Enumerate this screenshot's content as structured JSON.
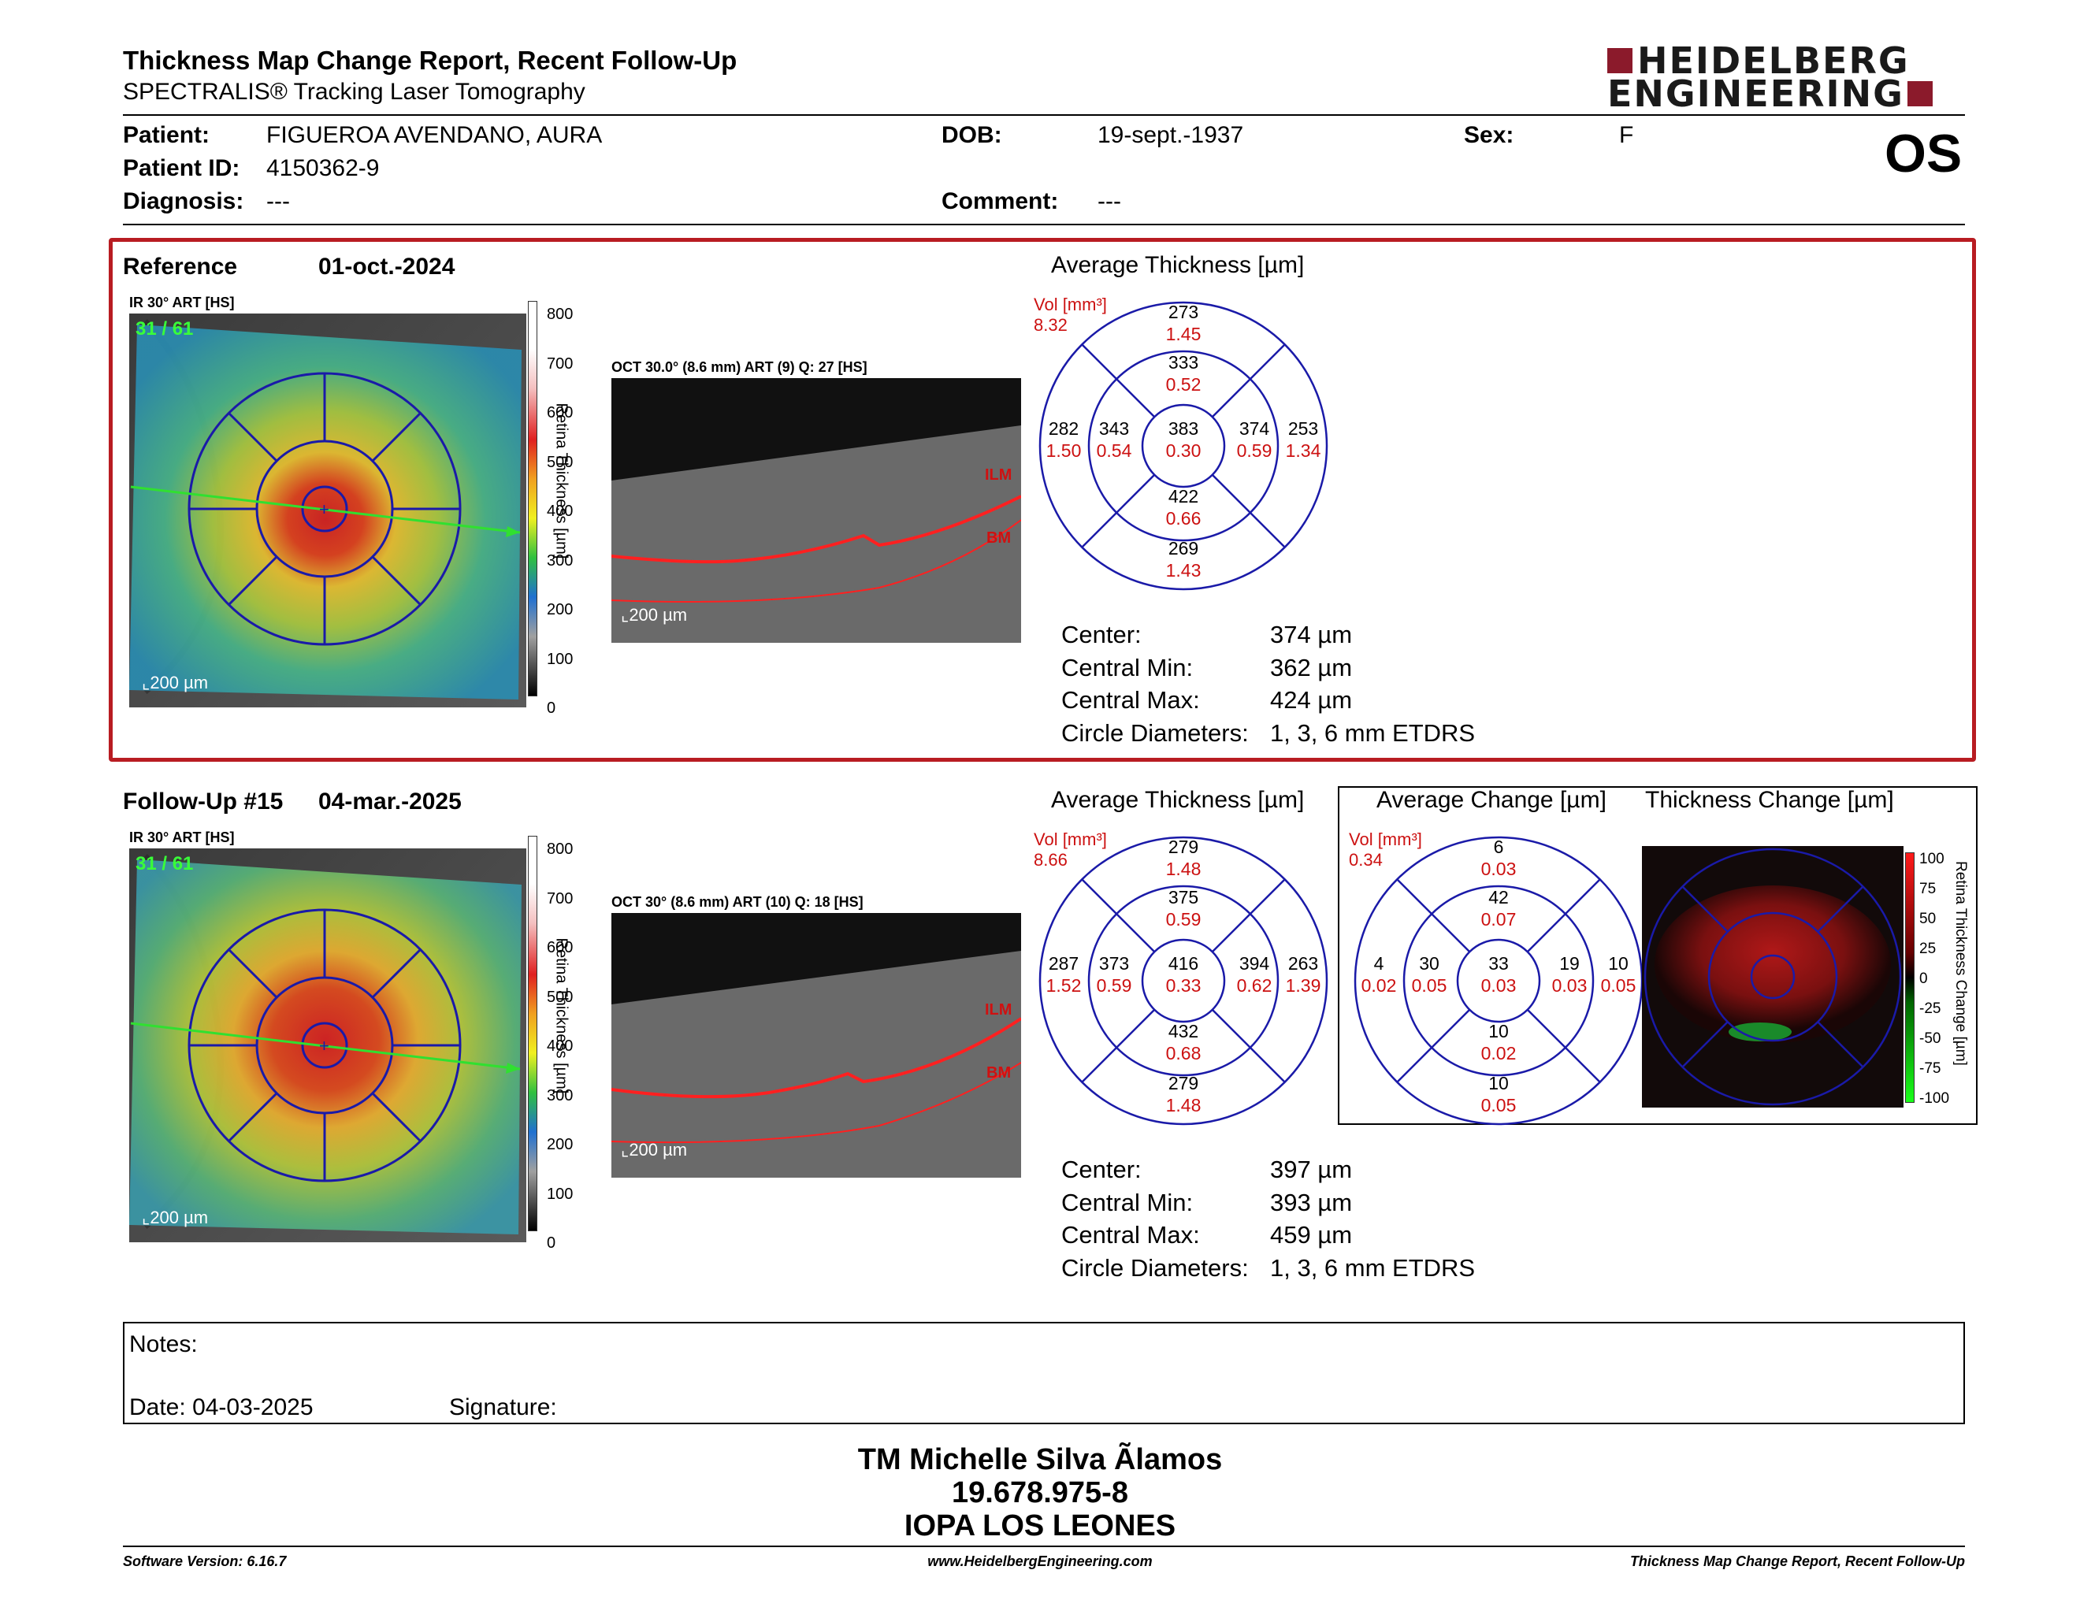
{
  "header": {
    "title": "Thickness Map Change Report, Recent Follow-Up",
    "subtitle": "SPECTRALIS® Tracking Laser Tomography",
    "logo_line1": "HEIDELBERG",
    "logo_line2": "ENGINEERING",
    "eye": "OS"
  },
  "patient": {
    "name_label": "Patient:",
    "name": "FIGUEROA AVENDANO, AURA",
    "id_label": "Patient ID:",
    "id": "4150362-9",
    "diagnosis_label": "Diagnosis:",
    "diagnosis": "---",
    "dob_label": "DOB:",
    "dob": "19-sept.-1937",
    "comment_label": "Comment:",
    "comment": "---",
    "sex_label": "Sex:",
    "sex": "F"
  },
  "colors": {
    "accent_red": "#b81c22",
    "etdrs_blue": "#1a1aa8",
    "volume_red": "#cc1111",
    "brand": "#8b1a2b"
  },
  "reference": {
    "label": "Reference",
    "date": "01-oct.-2024",
    "ir_caption": "IR 30° ART [HS]",
    "ir_counter": "31 / 61",
    "scale_bar": "200 µm",
    "oct_caption": "OCT 30.0° (8.6 mm) ART (9) Q: 27 [HS]",
    "oct_scale": "200 µm",
    "ilm": "ILM",
    "bm": "BM",
    "colorbar_ticks": [
      "800",
      "700",
      "600",
      "500",
      "400",
      "300",
      "200",
      "100",
      "0"
    ],
    "colorbar_label": "Retina Thickness [µm]",
    "avg_title": "Average Thickness [µm]",
    "vol_label": "Vol [mm³]",
    "vol_total": "8.32",
    "grid": {
      "outer_top": {
        "t": "273",
        "v": "1.45"
      },
      "inner_top": {
        "t": "333",
        "v": "0.52"
      },
      "outer_left": {
        "t": "282",
        "v": "1.50"
      },
      "inner_left": {
        "t": "343",
        "v": "0.54"
      },
      "center": {
        "t": "383",
        "v": "0.30"
      },
      "inner_right": {
        "t": "374",
        "v": "0.59"
      },
      "outer_right": {
        "t": "253",
        "v": "1.34"
      },
      "inner_bottom": {
        "t": "422",
        "v": "0.66"
      },
      "outer_bottom": {
        "t": "269",
        "v": "1.43"
      }
    },
    "stats": {
      "center_label": "Center:",
      "center": "374 µm",
      "min_label": "Central Min:",
      "min": "362 µm",
      "max_label": "Central Max:",
      "max": "424 µm",
      "diam_label": "Circle Diameters:",
      "diam": "1, 3, 6 mm ETDRS"
    }
  },
  "followup": {
    "label": "Follow-Up #15",
    "date": "04-mar.-2025",
    "ir_caption": "IR 30° ART [HS]",
    "ir_counter": "31 / 61",
    "scale_bar": "200 µm",
    "oct_caption": "OCT 30° (8.6 mm) ART (10) Q: 18 [HS]",
    "oct_scale": "200 µm",
    "ilm": "ILM",
    "bm": "BM",
    "colorbar_ticks": [
      "800",
      "700",
      "600",
      "500",
      "400",
      "300",
      "200",
      "100",
      "0"
    ],
    "colorbar_label": "Retina Thickness [µm]",
    "avg_title": "Average Thickness [µm]",
    "vol_label": "Vol [mm³]",
    "vol_total": "8.66",
    "grid": {
      "outer_top": {
        "t": "279",
        "v": "1.48"
      },
      "inner_top": {
        "t": "375",
        "v": "0.59"
      },
      "outer_left": {
        "t": "287",
        "v": "1.52"
      },
      "inner_left": {
        "t": "373",
        "v": "0.59"
      },
      "center": {
        "t": "416",
        "v": "0.33"
      },
      "inner_right": {
        "t": "394",
        "v": "0.62"
      },
      "outer_right": {
        "t": "263",
        "v": "1.39"
      },
      "inner_bottom": {
        "t": "432",
        "v": "0.68"
      },
      "outer_bottom": {
        "t": "279",
        "v": "1.48"
      }
    },
    "stats": {
      "center_label": "Center:",
      "center": "397 µm",
      "min_label": "Central Min:",
      "min": "393 µm",
      "max_label": "Central Max:",
      "max": "459 µm",
      "diam_label": "Circle Diameters:",
      "diam": "1, 3, 6 mm ETDRS"
    }
  },
  "change": {
    "avg_title": "Average Change [µm]",
    "map_title": "Thickness Change [µm]",
    "vol_label": "Vol [mm³]",
    "vol_total": "0.34",
    "grid": {
      "outer_top": {
        "t": "6",
        "v": "0.03"
      },
      "inner_top": {
        "t": "42",
        "v": "0.07"
      },
      "outer_left": {
        "t": "4",
        "v": "0.02"
      },
      "inner_left": {
        "t": "30",
        "v": "0.05"
      },
      "center": {
        "t": "33",
        "v": "0.03"
      },
      "inner_right": {
        "t": "19",
        "v": "0.03"
      },
      "outer_right": {
        "t": "10",
        "v": "0.05"
      },
      "inner_bottom": {
        "t": "10",
        "v": "0.02"
      },
      "outer_bottom": {
        "t": "10",
        "v": "0.05"
      }
    },
    "colorbar_ticks": [
      "100",
      "75",
      "50",
      "25",
      "0",
      "-25",
      "-50",
      "-75",
      "-100"
    ],
    "colorbar_label": "Retina Thickness Change [µm]"
  },
  "notes": {
    "label": "Notes:",
    "date_label": "Date:",
    "date": "04-03-2025",
    "signature_label": "Signature:"
  },
  "signature_block": {
    "line1": "TM Michelle Silva Ãlamos",
    "line2": "19.678.975-8",
    "line3": "IOPA LOS LEONES"
  },
  "footer": {
    "software": "Software Version: 6.16.7",
    "website": "www.HeidelbergEngineering.com",
    "report_name": "Thickness Map Change Report, Recent Follow-Up"
  }
}
